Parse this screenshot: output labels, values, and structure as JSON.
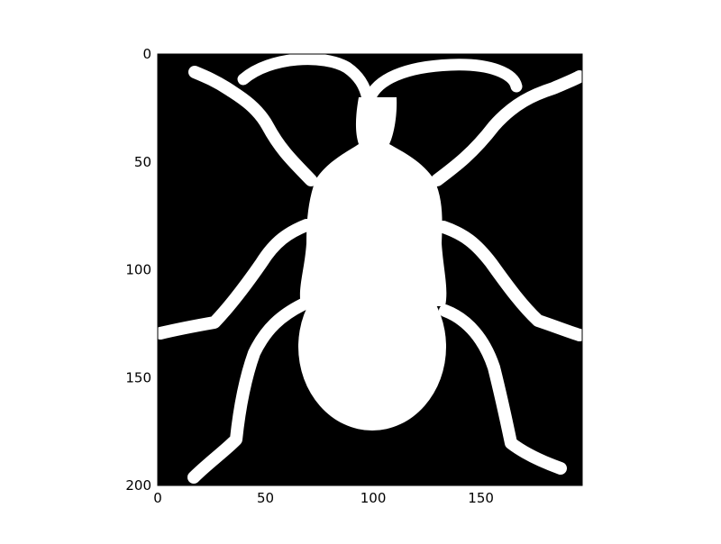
{
  "chart_data": {
    "type": "heatmap",
    "title": "",
    "xlabel": "",
    "ylabel": "",
    "xlim": [
      0,
      197
    ],
    "ylim": [
      200,
      0
    ],
    "x_ticks": [
      0,
      50,
      100,
      150
    ],
    "y_ticks": [
      0,
      50,
      100,
      150,
      200
    ],
    "grid": false,
    "colormap": "binary (black background, white foreground)",
    "colors": {
      "background": "#000000",
      "foreground": "#ffffff",
      "axes": "#000000"
    },
    "image_content": "white silhouette of a beetle with six legs and two antennae on black background"
  }
}
